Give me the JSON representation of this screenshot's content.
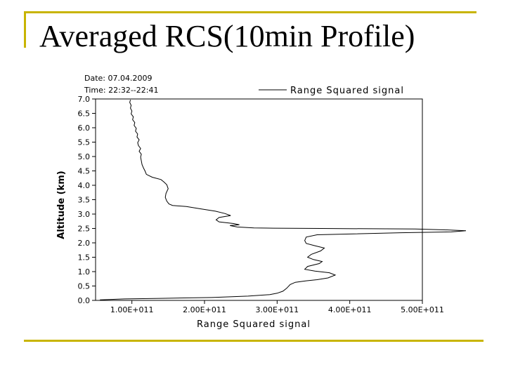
{
  "slide": {
    "title": "Averaged RCS(10min Profile)",
    "accent_color": "#c8b400"
  },
  "chart_data": {
    "type": "line",
    "date_label": "Date: 07.04.2009",
    "time_label": "Time: 22:32--22:41",
    "legend": "Range Squared signal",
    "legend_position": "top-right",
    "xlabel": "Range Squared signal",
    "ylabel": "Altitude (km)",
    "xlim": [
      50000000000.0,
      500000000000.0
    ],
    "ylim": [
      0,
      7
    ],
    "xticks": [
      100000000000.0,
      200000000000.0,
      300000000000.0,
      400000000000.0,
      500000000000.0
    ],
    "xtick_labels": [
      "1.00E+011",
      "2.00E+011",
      "3.00E+011",
      "4.00E+011",
      "5.00E+011"
    ],
    "yticks": [
      0,
      0.5,
      1.0,
      1.5,
      2.0,
      2.5,
      3.0,
      3.5,
      4.0,
      4.5,
      5.0,
      5.5,
      6.0,
      6.5,
      7.0
    ],
    "ytick_labels": [
      "0.0",
      "0.5",
      "1.0",
      "1.5",
      "2.0",
      "2.5",
      "3.0",
      "3.5",
      "4.0",
      "4.5",
      "5.0",
      "5.5",
      "6.0",
      "6.5",
      "7.0"
    ],
    "grid": false,
    "series": [
      {
        "name": "Range Squared signal",
        "color": "#000000",
        "points": [
          [
            56000000000.0,
            0.02
          ],
          [
            90000000000.0,
            0.05
          ],
          [
            140000000000.0,
            0.07
          ],
          [
            210000000000.0,
            0.1
          ],
          [
            260000000000.0,
            0.15
          ],
          [
            290000000000.0,
            0.2
          ],
          [
            300000000000.0,
            0.25
          ],
          [
            308000000000.0,
            0.32
          ],
          [
            313000000000.0,
            0.42
          ],
          [
            318000000000.0,
            0.55
          ],
          [
            325000000000.0,
            0.63
          ],
          [
            340000000000.0,
            0.68
          ],
          [
            355000000000.0,
            0.72
          ],
          [
            370000000000.0,
            0.78
          ],
          [
            380000000000.0,
            0.88
          ],
          [
            372000000000.0,
            0.96
          ],
          [
            352000000000.0,
            1.02
          ],
          [
            338000000000.0,
            1.08
          ],
          [
            342000000000.0,
            1.18
          ],
          [
            358000000000.0,
            1.28
          ],
          [
            362000000000.0,
            1.35
          ],
          [
            350000000000.0,
            1.42
          ],
          [
            342000000000.0,
            1.5
          ],
          [
            347000000000.0,
            1.6
          ],
          [
            360000000000.0,
            1.72
          ],
          [
            365000000000.0,
            1.82
          ],
          [
            352000000000.0,
            1.9
          ],
          [
            340000000000.0,
            1.98
          ],
          [
            338000000000.0,
            2.08
          ],
          [
            340000000000.0,
            2.2
          ],
          [
            355000000000.0,
            2.28
          ],
          [
            470000000000.0,
            2.35
          ],
          [
            540000000000.0,
            2.38
          ],
          [
            560000000000.0,
            2.42
          ],
          [
            535000000000.0,
            2.45
          ],
          [
            490000000000.0,
            2.48
          ],
          [
            360000000000.0,
            2.5
          ],
          [
            295000000000.0,
            2.51
          ],
          [
            268000000000.0,
            2.52
          ],
          [
            245000000000.0,
            2.55
          ],
          [
            235000000000.0,
            2.6
          ],
          [
            248000000000.0,
            2.63
          ],
          [
            240000000000.0,
            2.67
          ],
          [
            220000000000.0,
            2.73
          ],
          [
            216000000000.0,
            2.8
          ],
          [
            220000000000.0,
            2.88
          ],
          [
            236000000000.0,
            2.95
          ],
          [
            228000000000.0,
            3.02
          ],
          [
            215000000000.0,
            3.1
          ],
          [
            195000000000.0,
            3.18
          ],
          [
            175000000000.0,
            3.26
          ],
          [
            156000000000.0,
            3.3
          ],
          [
            151000000000.0,
            3.35
          ],
          [
            148000000000.0,
            3.45
          ],
          [
            146000000000.0,
            3.58
          ],
          [
            147000000000.0,
            3.72
          ],
          [
            150000000000.0,
            3.88
          ],
          [
            148000000000.0,
            4.02
          ],
          [
            144000000000.0,
            4.12
          ],
          [
            140000000000.0,
            4.2
          ],
          [
            128000000000.0,
            4.28
          ],
          [
            120000000000.0,
            4.38
          ],
          [
            118000000000.0,
            4.5
          ],
          [
            116000000000.0,
            4.6
          ],
          [
            114000000000.0,
            4.72
          ],
          [
            113000000000.0,
            4.85
          ],
          [
            112000000000.0,
            4.98
          ],
          [
            113000000000.0,
            5.08
          ],
          [
            110000000000.0,
            5.18
          ],
          [
            112000000000.0,
            5.28
          ],
          [
            109000000000.0,
            5.38
          ],
          [
            108000000000.0,
            5.48
          ],
          [
            110000000000.0,
            5.58
          ],
          [
            107000000000.0,
            5.68
          ],
          [
            108000000000.0,
            5.78
          ],
          [
            105000000000.0,
            5.88
          ],
          [
            106000000000.0,
            5.98
          ],
          [
            103000000000.0,
            6.08
          ],
          [
            104000000000.0,
            6.18
          ],
          [
            101000000000.0,
            6.28
          ],
          [
            102000000000.0,
            6.38
          ],
          [
            99000000000.0,
            6.48
          ],
          [
            100000000000.0,
            6.58
          ],
          [
            98000000000.0,
            6.68
          ],
          [
            99000000000.0,
            6.78
          ],
          [
            97000000000.0,
            6.88
          ],
          [
            98000000000.0,
            6.97
          ]
        ]
      }
    ]
  }
}
